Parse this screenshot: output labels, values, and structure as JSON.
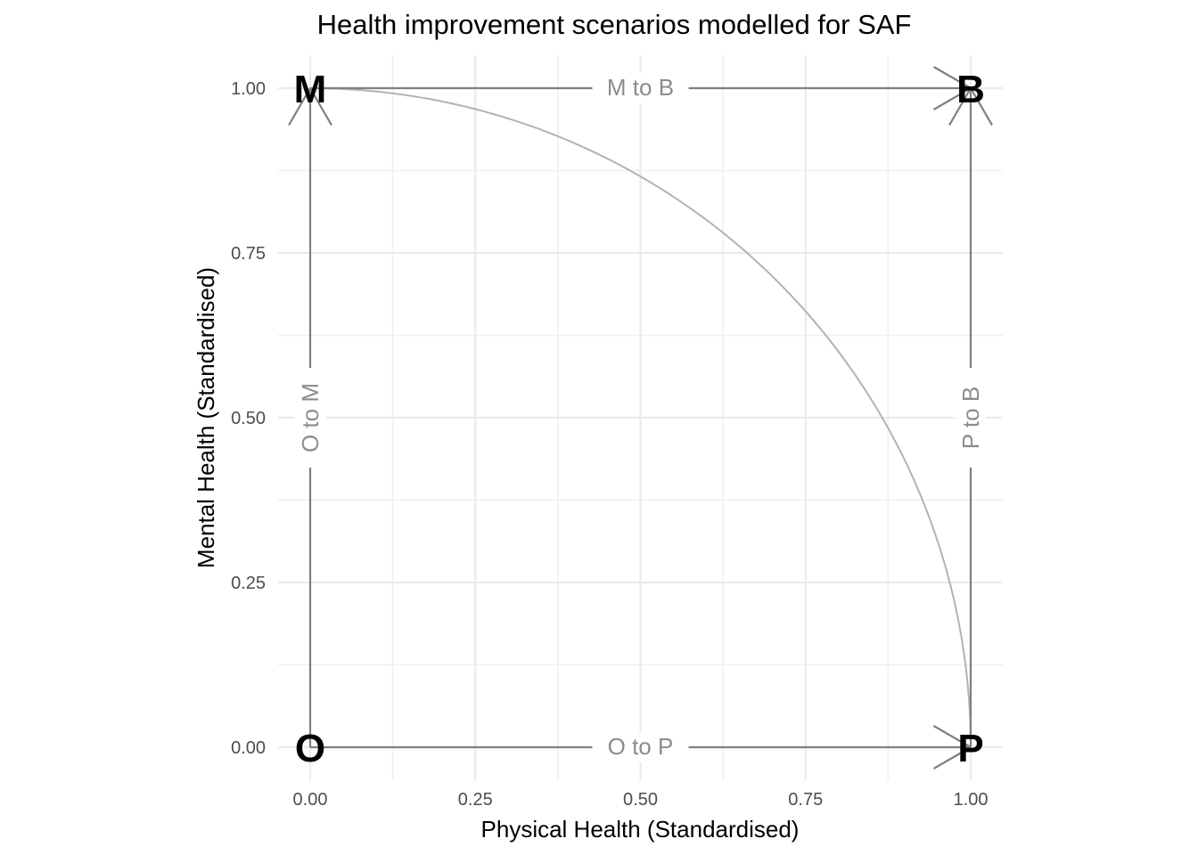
{
  "chart_data": {
    "type": "line",
    "title": "Health improvement scenarios modelled for SAF",
    "xlabel": "Physical Health (Standardised)",
    "ylabel": "Mental Health (Standardised)",
    "xlim": [
      0,
      1
    ],
    "ylim": [
      0,
      1
    ],
    "x_ticks": [
      {
        "value": 0,
        "label": "0.00"
      },
      {
        "value": 0.25,
        "label": "0.25"
      },
      {
        "value": 0.5,
        "label": "0.50"
      },
      {
        "value": 0.75,
        "label": "0.75"
      },
      {
        "value": 1,
        "label": "1.00"
      }
    ],
    "y_ticks": [
      {
        "value": 0,
        "label": "0.00"
      },
      {
        "value": 0.25,
        "label": "0.25"
      },
      {
        "value": 0.5,
        "label": "0.50"
      },
      {
        "value": 0.75,
        "label": "0.75"
      },
      {
        "value": 1,
        "label": "1.00"
      }
    ],
    "grid": true,
    "points": [
      {
        "id": "O",
        "label": "O",
        "x": 0,
        "y": 0
      },
      {
        "id": "P",
        "label": "P",
        "x": 1,
        "y": 0
      },
      {
        "id": "M",
        "label": "M",
        "x": 0,
        "y": 1
      },
      {
        "id": "B",
        "label": "B",
        "x": 1,
        "y": 1
      }
    ],
    "paths": [
      {
        "name": "O to P",
        "from": [
          0,
          0
        ],
        "to": [
          1,
          0
        ],
        "orientation": "horizontal"
      },
      {
        "name": "M to B",
        "from": [
          0,
          1
        ],
        "to": [
          1,
          1
        ],
        "orientation": "horizontal"
      },
      {
        "name": "O to M",
        "from": [
          0,
          0
        ],
        "to": [
          0,
          1
        ],
        "orientation": "vertical"
      },
      {
        "name": "P to B",
        "from": [
          1,
          0
        ],
        "to": [
          1,
          1
        ],
        "orientation": "vertical"
      }
    ],
    "frontier": {
      "name": "quarter-circle frontier",
      "center": [
        0,
        0
      ],
      "radius": 1,
      "from": [
        0,
        1
      ],
      "to": [
        1,
        0
      ]
    }
  }
}
